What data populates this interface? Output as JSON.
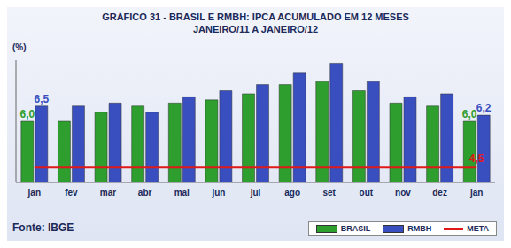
{
  "chart_data": {
    "type": "bar",
    "title": "GRÁFICO 31 - BRASIL E RMBH: IPCA ACUMULADO EM 12 MESES",
    "subtitle": "JANEIRO/11 A JANEIRO/12",
    "y_label": "(%)",
    "source": "Fonte: IBGE",
    "categories": [
      "jan",
      "fev",
      "mar",
      "abr",
      "mai",
      "jun",
      "jul",
      "ago",
      "set",
      "out",
      "nov",
      "dez",
      "jan"
    ],
    "series": [
      {
        "name": "BRASIL",
        "type": "bar",
        "color": "#2e9e2e",
        "values": [
          6.0,
          6.0,
          6.3,
          6.5,
          6.6,
          6.7,
          6.9,
          7.2,
          7.3,
          7.0,
          6.6,
          6.5,
          6.0
        ],
        "value_labels": [
          "6,0",
          null,
          null,
          null,
          null,
          null,
          null,
          null,
          null,
          null,
          null,
          null,
          "6,0"
        ]
      },
      {
        "name": "RMBH",
        "type": "bar",
        "color": "#3a4fbf",
        "values": [
          6.5,
          6.5,
          6.6,
          6.3,
          6.8,
          7.0,
          7.2,
          7.6,
          7.9,
          7.3,
          6.8,
          6.9,
          6.2
        ],
        "value_labels": [
          "6,5",
          null,
          null,
          null,
          null,
          null,
          null,
          null,
          null,
          null,
          null,
          null,
          "6,2"
        ]
      },
      {
        "name": "META",
        "type": "line",
        "color": "#e01818",
        "values": [
          4.5,
          4.5,
          4.5,
          4.5,
          4.5,
          4.5,
          4.5,
          4.5,
          4.5,
          4.5,
          4.5,
          4.5,
          4.5
        ],
        "value_labels": [
          null,
          null,
          null,
          null,
          null,
          null,
          null,
          null,
          null,
          null,
          null,
          null,
          "4,5"
        ]
      }
    ],
    "ylim": [
      4,
      8
    ],
    "data_labels": true,
    "tick_labels": "x",
    "legend": "lower right"
  }
}
